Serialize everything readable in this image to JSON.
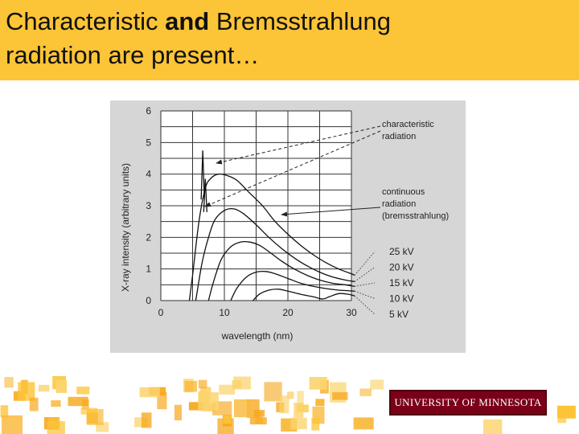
{
  "slide": {
    "title_part1": "Characteristic ",
    "title_bold": "and",
    "title_part2": " Bremsstrahlung",
    "title_line2": "radiation are present…"
  },
  "logo": {
    "text": "UNIVERSITY OF MINNESOTA"
  },
  "colors": {
    "title_bar": "#fcc437",
    "figure_bg": "#d6d6d6",
    "logo_bg": "#7a0019"
  },
  "chart_data": {
    "type": "line",
    "title": "",
    "xlabel": "wavelength (nm)",
    "ylabel": "X-ray intensity (arbitrary units)",
    "xlim": [
      0,
      30
    ],
    "ylim": [
      0,
      6
    ],
    "x_ticks": [
      0,
      10,
      20,
      30
    ],
    "x_tick_labels": [
      "0",
      "10",
      "20",
      "30"
    ],
    "y_ticks": [
      0,
      1,
      2,
      3,
      4,
      5,
      6
    ],
    "y_tick_labels": [
      "0",
      "1",
      "2",
      "3",
      "4",
      "5",
      "6"
    ],
    "grid": true,
    "series": [
      {
        "name": "25 kV",
        "points": [
          [
            4.5,
            0
          ],
          [
            5,
            0.8
          ],
          [
            6,
            2.5
          ],
          [
            7,
            3.55
          ],
          [
            7.8,
            3.85
          ],
          [
            9,
            4.0
          ],
          [
            10.5,
            3.95
          ],
          [
            12,
            3.8
          ],
          [
            14,
            3.4
          ],
          [
            16,
            3.0
          ],
          [
            18,
            2.5
          ],
          [
            20,
            2.1
          ],
          [
            22,
            1.75
          ],
          [
            24,
            1.45
          ],
          [
            26,
            1.2
          ],
          [
            28,
            1.0
          ],
          [
            30,
            0.85
          ],
          [
            30.5,
            0.8
          ]
        ]
      },
      {
        "name": "20 kV",
        "points": [
          [
            5.5,
            0
          ],
          [
            6.5,
            1.2
          ],
          [
            7.5,
            2.0
          ],
          [
            8.5,
            2.55
          ],
          [
            10,
            2.85
          ],
          [
            11.5,
            2.9
          ],
          [
            13,
            2.75
          ],
          [
            15,
            2.4
          ],
          [
            17,
            2.0
          ],
          [
            19,
            1.65
          ],
          [
            21,
            1.35
          ],
          [
            23,
            1.1
          ],
          [
            25,
            0.9
          ],
          [
            27,
            0.75
          ],
          [
            29,
            0.65
          ],
          [
            30.5,
            0.6
          ]
        ]
      },
      {
        "name": "15 kV",
        "points": [
          [
            7.5,
            0
          ],
          [
            8.3,
            0.6
          ],
          [
            9.5,
            1.3
          ],
          [
            11,
            1.7
          ],
          [
            12.5,
            1.85
          ],
          [
            14,
            1.85
          ],
          [
            15.5,
            1.75
          ],
          [
            17,
            1.55
          ],
          [
            19,
            1.25
          ],
          [
            21,
            1.0
          ],
          [
            23,
            0.8
          ],
          [
            25,
            0.65
          ],
          [
            27,
            0.55
          ],
          [
            29,
            0.5
          ],
          [
            30.5,
            0.45
          ]
        ]
      },
      {
        "name": "10 kV",
        "points": [
          [
            11,
            0
          ],
          [
            12,
            0.4
          ],
          [
            13.5,
            0.75
          ],
          [
            15,
            0.9
          ],
          [
            16.5,
            0.92
          ],
          [
            18,
            0.85
          ],
          [
            20,
            0.7
          ],
          [
            22,
            0.55
          ],
          [
            24,
            0.45
          ],
          [
            26,
            0.38
          ],
          [
            28,
            0.33
          ],
          [
            30.5,
            0.3
          ]
        ]
      },
      {
        "name": "5 kV",
        "points": [
          [
            14.5,
            0
          ],
          [
            15.5,
            0.2
          ],
          [
            17,
            0.33
          ],
          [
            18.5,
            0.36
          ],
          [
            20,
            0.3
          ],
          [
            22,
            0.2
          ],
          [
            24,
            0.12
          ],
          [
            25.5,
            0.05
          ],
          [
            26.5,
            0.12
          ],
          [
            28,
            0.22
          ],
          [
            29.5,
            0.2
          ],
          [
            30.5,
            0.15
          ]
        ]
      }
    ],
    "characteristic_peaks": [
      {
        "x": 6.6,
        "y_top": 4.75,
        "y_base": 3.2
      },
      {
        "x": 7.0,
        "y_top": 3.85,
        "y_base": 2.8
      }
    ],
    "annotations": [
      {
        "lines": [
          "characteristic",
          "radiation"
        ]
      },
      {
        "lines": [
          "continuous",
          "radiation",
          "(bremsstrahlung)"
        ]
      }
    ]
  }
}
